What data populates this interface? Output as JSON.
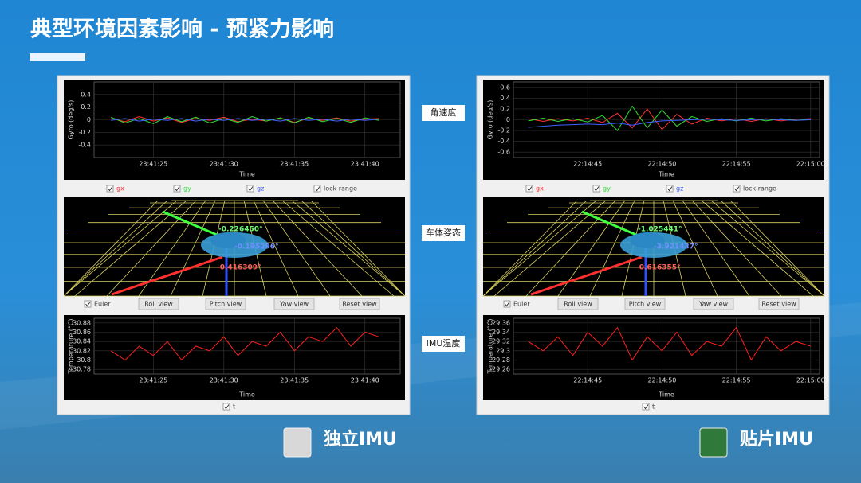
{
  "title": "典型环境因素影响 - 预紧力影响",
  "row_labels": [
    "角速度",
    "车体姿态",
    "IMU温度"
  ],
  "panels": [
    {
      "caption": "独立IMU",
      "gyro": {
        "type": "line",
        "ylabel": "Gyro (deg/s)",
        "xlabel": "Time",
        "xlim": [
          85280.8,
          85302.5
        ],
        "xticks": [
          {
            "value": 85285,
            "label": "23:41:25"
          },
          {
            "value": 85290,
            "label": "23:41:30"
          },
          {
            "value": 85295,
            "label": "23:41:35"
          },
          {
            "value": 85300,
            "label": "23:41:40"
          }
        ],
        "ylim": [
          -0.6,
          0.6
        ],
        "yticks": [
          -0.4,
          -0.2,
          0,
          0.2,
          0.4
        ],
        "x": [
          85282,
          85283,
          85284,
          85285,
          85286,
          85287,
          85288,
          85289,
          85290,
          85291,
          85292,
          85293,
          85294,
          85295,
          85296,
          85297,
          85298,
          85299,
          85300,
          85301
        ],
        "series": [
          {
            "name": "gx",
            "color": "#ff3030",
            "values": [
              0.02,
              -0.03,
              0.05,
              -0.02,
              0.03,
              -0.04,
              0.02,
              -0.01,
              0.04,
              -0.03,
              0.01,
              -0.02,
              0.03,
              -0.04,
              0.02,
              -0.01,
              0.03,
              -0.02,
              0.01,
              0.02
            ]
          },
          {
            "name": "gy",
            "color": "#30e030",
            "values": [
              0.04,
              -0.05,
              0.02,
              -0.06,
              0.05,
              -0.03,
              0.04,
              -0.05,
              0.02,
              -0.04,
              0.05,
              -0.02,
              0.03,
              -0.05,
              0.04,
              -0.03,
              0.02,
              -0.04,
              0.03,
              -0.01
            ]
          },
          {
            "name": "gz",
            "color": "#4060ff",
            "values": [
              -0.01,
              0.02,
              -0.02,
              0.01,
              -0.01,
              0.02,
              -0.02,
              0.01,
              -0.01,
              0.02,
              -0.01,
              0.01,
              -0.02,
              0.02,
              -0.01,
              0.01,
              -0.02,
              0.01,
              -0.01,
              0.01
            ]
          }
        ]
      },
      "lock_range": "lock range",
      "view3d": {
        "labels": [
          {
            "text": "-0.226450°",
            "color": "#70ff70"
          },
          {
            "text": "-0.195296°",
            "color": "#7090ff"
          },
          {
            "text": "-0.416309°",
            "color": "#ff6060"
          }
        ]
      },
      "euler": "Euler",
      "buttons": [
        "Roll view",
        "Pitch view",
        "Yaw view",
        "Reset view"
      ],
      "temp": {
        "type": "line",
        "ylabel": "Temperature (°C)",
        "xlabel": "Time",
        "xlim": [
          85280.8,
          85302.5
        ],
        "xticks": [
          {
            "value": 85285,
            "label": "23:41:25"
          },
          {
            "value": 85290,
            "label": "23:41:30"
          },
          {
            "value": 85295,
            "label": "23:41:35"
          },
          {
            "value": 85300,
            "label": "23:41:40"
          }
        ],
        "ylim": [
          30.77,
          30.89
        ],
        "yticks": [
          30.78,
          30.8,
          30.82,
          30.84,
          30.86,
          30.88
        ],
        "x": [
          85282,
          85283,
          85284,
          85285,
          85286,
          85287,
          85288,
          85289,
          85290,
          85291,
          85292,
          85293,
          85294,
          85295,
          85296,
          85297,
          85298,
          85299,
          85300,
          85301
        ],
        "series": [
          {
            "name": "t",
            "color": "#ff2020",
            "values": [
              30.82,
              30.8,
              30.83,
              30.81,
              30.84,
              30.8,
              30.83,
              30.82,
              30.85,
              30.81,
              30.84,
              30.83,
              30.86,
              30.82,
              30.85,
              30.84,
              30.87,
              30.83,
              30.86,
              30.85
            ]
          }
        ]
      }
    },
    {
      "caption": "贴片IMU",
      "gyro": {
        "type": "line",
        "ylabel": "Gyro (deg/s)",
        "xlabel": "Time",
        "xlim": [
          80080,
          80100.6
        ],
        "xticks": [
          {
            "value": 80085,
            "label": "22:14:45"
          },
          {
            "value": 80090,
            "label": "22:14:50"
          },
          {
            "value": 80095,
            "label": "22:14:55"
          },
          {
            "value": 80100,
            "label": "22:15:00"
          }
        ],
        "ylim": [
          -0.7,
          0.7
        ],
        "yticks": [
          -0.6,
          -0.4,
          -0.2,
          0,
          0.2,
          0.4,
          0.6
        ],
        "x": [
          80081,
          80082,
          80083,
          80084,
          80085,
          80086,
          80087,
          80088,
          80089,
          80090,
          80091,
          80092,
          80093,
          80094,
          80095,
          80096,
          80097,
          80098,
          80099,
          80100
        ],
        "series": [
          {
            "name": "gx",
            "color": "#ff3030",
            "values": [
              0.02,
              -0.03,
              0.02,
              -0.02,
              0.03,
              -0.05,
              0.12,
              -0.15,
              0.2,
              -0.18,
              0.1,
              -0.08,
              0.03,
              -0.02,
              0.02,
              -0.03,
              0.02,
              -0.02,
              0.01,
              0.02
            ]
          },
          {
            "name": "gy",
            "color": "#30e030",
            "values": [
              -0.02,
              0.03,
              -0.03,
              0.02,
              -0.04,
              0.08,
              -0.2,
              0.25,
              -0.15,
              0.18,
              -0.12,
              0.06,
              -0.03,
              0.02,
              -0.02,
              0.03,
              -0.02,
              0.02,
              -0.01,
              0.01
            ]
          },
          {
            "name": "gz",
            "color": "#4060ff",
            "values": [
              -0.14,
              -0.12,
              -0.1,
              -0.09,
              -0.08,
              -0.09,
              -0.06,
              -0.1,
              -0.05,
              -0.02,
              -0.01,
              0,
              0.01,
              0,
              -0.01,
              0,
              0.01,
              0,
              -0.01,
              0
            ]
          }
        ]
      },
      "lock_range": "lock range",
      "view3d": {
        "labels": [
          {
            "text": "-1.025441°",
            "color": "#70ff70"
          },
          {
            "text": "-3.921437°",
            "color": "#7090ff"
          },
          {
            "text": "-0.616355°",
            "color": "#ff6060"
          }
        ]
      },
      "euler": "Euler",
      "buttons": [
        "Roll view",
        "Pitch view",
        "Yaw view",
        "Reset view"
      ],
      "temp": {
        "type": "line",
        "ylabel": "Temperature (°C)",
        "xlabel": "Time",
        "xlim": [
          80080,
          80100.6
        ],
        "xticks": [
          {
            "value": 80085,
            "label": "22:14:45"
          },
          {
            "value": 80090,
            "label": "22:14:50"
          },
          {
            "value": 80095,
            "label": "22:14:55"
          },
          {
            "value": 80100,
            "label": "22:15:00"
          }
        ],
        "ylim": [
          29.25,
          29.37
        ],
        "yticks": [
          29.26,
          29.28,
          29.3,
          29.32,
          29.34,
          29.36
        ],
        "x": [
          80081,
          80082,
          80083,
          80084,
          80085,
          80086,
          80087,
          80088,
          80089,
          80090,
          80091,
          80092,
          80093,
          80094,
          80095,
          80096,
          80097,
          80098,
          80099,
          80100
        ],
        "series": [
          {
            "name": "t",
            "color": "#ff2020",
            "values": [
              29.32,
              29.3,
              29.33,
              29.29,
              29.34,
              29.31,
              29.35,
              29.28,
              29.33,
              29.3,
              29.34,
              29.29,
              29.32,
              29.31,
              29.35,
              29.28,
              29.33,
              29.3,
              29.32,
              29.31
            ]
          }
        ]
      }
    }
  ]
}
